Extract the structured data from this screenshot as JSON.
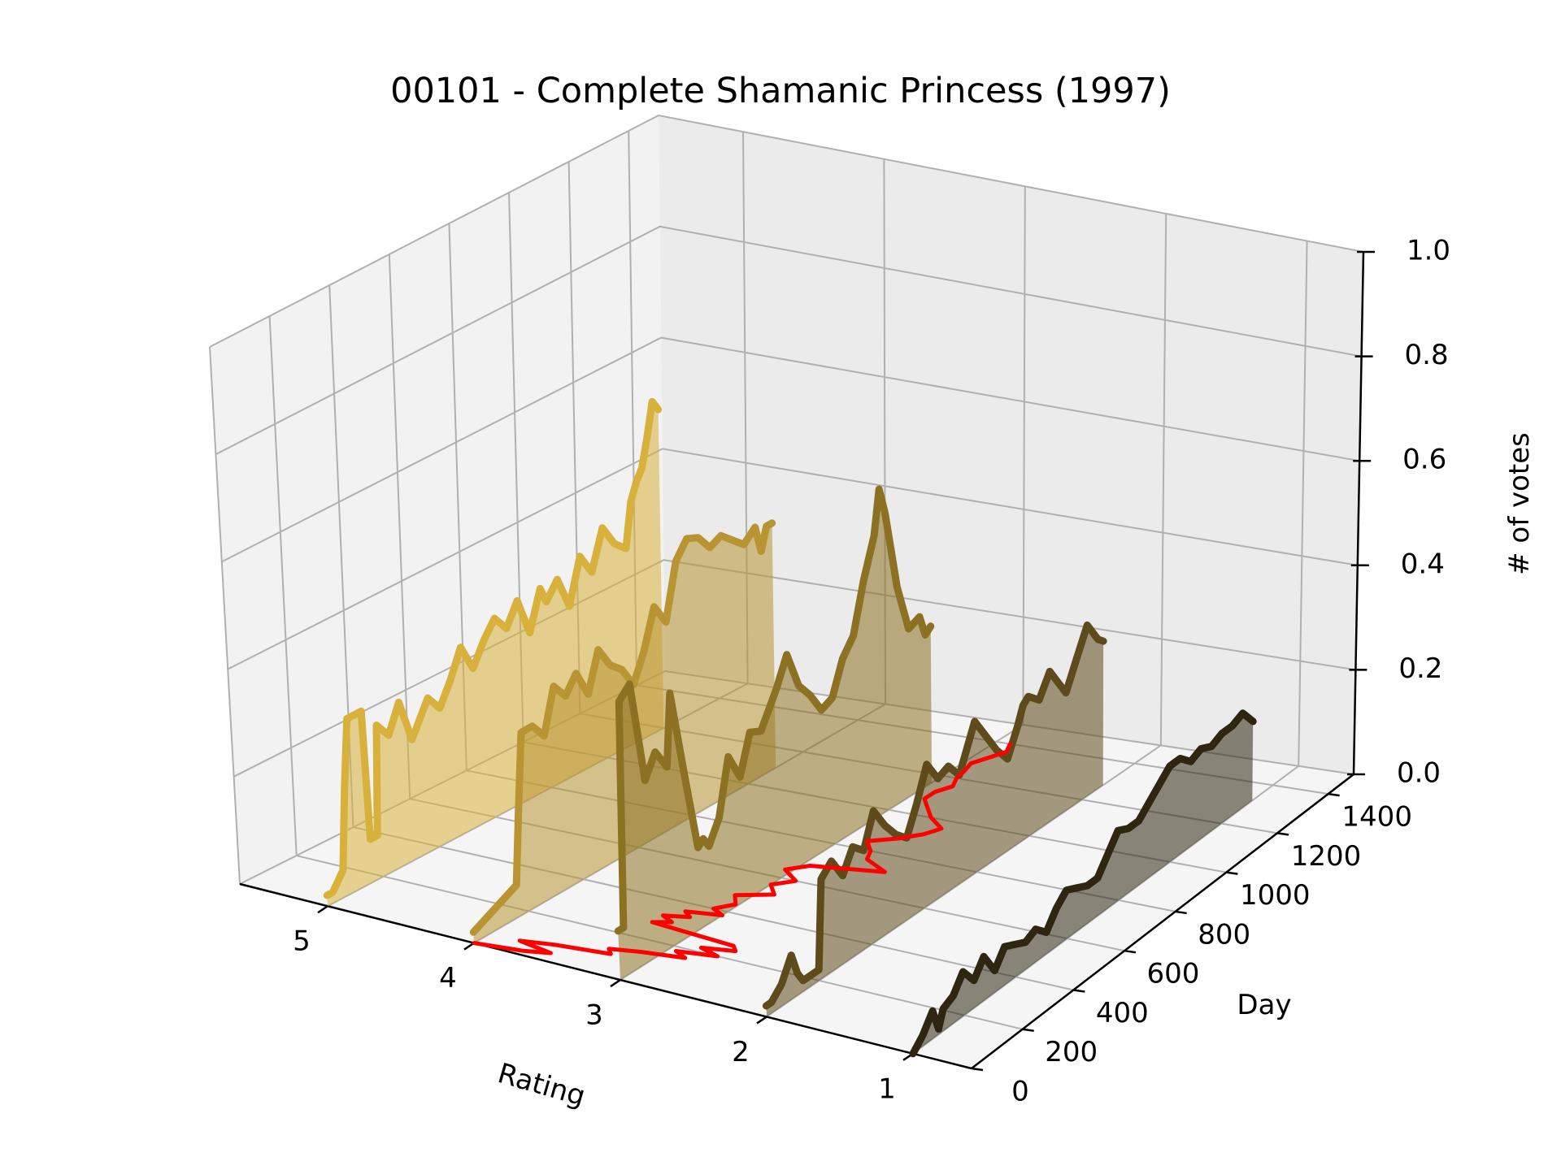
{
  "chart_data": {
    "type": "line",
    "projection": "3d",
    "title": "00101 - Complete Shamanic Princess (1997)",
    "xlabel": "Rating",
    "ylabel": "Day",
    "zlabel": "# of votes",
    "x_ticks": [
      "5",
      "4",
      "3",
      "2",
      "1"
    ],
    "y_ticks": [
      "0",
      "200",
      "400",
      "600",
      "800",
      "1000",
      "1200",
      "1400"
    ],
    "z_ticks": [
      "0.0",
      "0.2",
      "0.4",
      "0.6",
      "0.8",
      "1.0"
    ],
    "xlim": [
      0.6,
      5.6
    ],
    "ylim": [
      0,
      1500
    ],
    "zlim": [
      0,
      1
    ],
    "grid": true,
    "filled": true,
    "series": [
      {
        "rating": 5,
        "color": "#d8b13c",
        "points": [
          [
            0,
            0.02
          ],
          [
            20,
            0.02
          ],
          [
            60,
            0.05
          ],
          [
            80,
            0.2
          ],
          [
            100,
            0.32
          ],
          [
            150,
            0.32
          ],
          [
            160,
            0.08
          ],
          [
            185,
            0.08
          ],
          [
            200,
            0.28
          ],
          [
            240,
            0.25
          ],
          [
            280,
            0.3
          ],
          [
            320,
            0.22
          ],
          [
            380,
            0.28
          ],
          [
            420,
            0.25
          ],
          [
            460,
            0.29
          ],
          [
            500,
            0.34
          ],
          [
            540,
            0.29
          ],
          [
            580,
            0.33
          ],
          [
            620,
            0.36
          ],
          [
            660,
            0.33
          ],
          [
            700,
            0.37
          ],
          [
            740,
            0.3
          ],
          [
            780,
            0.37
          ],
          [
            800,
            0.34
          ],
          [
            840,
            0.37
          ],
          [
            880,
            0.31
          ],
          [
            920,
            0.39
          ],
          [
            960,
            0.35
          ],
          [
            1000,
            0.42
          ],
          [
            1040,
            0.38
          ],
          [
            1080,
            0.36
          ],
          [
            1100,
            0.44
          ],
          [
            1120,
            0.47
          ],
          [
            1140,
            0.49
          ],
          [
            1160,
            0.54
          ],
          [
            1180,
            0.6
          ],
          [
            1200,
            0.58
          ]
        ]
      },
      {
        "rating": 4,
        "color": "#b89433",
        "points": [
          [
            0,
            0.02
          ],
          [
            160,
            0.06
          ],
          [
            180,
            0.2
          ],
          [
            200,
            0.33
          ],
          [
            240,
            0.33
          ],
          [
            280,
            0.3
          ],
          [
            320,
            0.38
          ],
          [
            360,
            0.35
          ],
          [
            400,
            0.38
          ],
          [
            440,
            0.33
          ],
          [
            480,
            0.4
          ],
          [
            520,
            0.36
          ],
          [
            560,
            0.34
          ],
          [
            600,
            0.3
          ],
          [
            640,
            0.35
          ],
          [
            680,
            0.42
          ],
          [
            720,
            0.38
          ],
          [
            760,
            0.48
          ],
          [
            800,
            0.51
          ],
          [
            840,
            0.5
          ],
          [
            880,
            0.47
          ],
          [
            920,
            0.48
          ],
          [
            960,
            0.46
          ],
          [
            1000,
            0.44
          ],
          [
            1040,
            0.46
          ],
          [
            1060,
            0.41
          ],
          [
            1080,
            0.45
          ],
          [
            1100,
            0.45
          ]
        ]
      },
      {
        "rating": 3,
        "color": "#8c7122",
        "points": [
          [
            0,
            0.09
          ],
          [
            20,
            0.09
          ],
          [
            40,
            0.5
          ],
          [
            80,
            0.52
          ],
          [
            120,
            0.33
          ],
          [
            160,
            0.37
          ],
          [
            200,
            0.33
          ],
          [
            220,
            0.46
          ],
          [
            260,
            0.3
          ],
          [
            300,
            0.15
          ],
          [
            320,
            0.16
          ],
          [
            340,
            0.14
          ],
          [
            380,
            0.18
          ],
          [
            420,
            0.28
          ],
          [
            460,
            0.23
          ],
          [
            500,
            0.3
          ],
          [
            540,
            0.29
          ],
          [
            600,
            0.35
          ],
          [
            640,
            0.4
          ],
          [
            680,
            0.33
          ],
          [
            720,
            0.3
          ],
          [
            760,
            0.26
          ],
          [
            800,
            0.27
          ],
          [
            840,
            0.33
          ],
          [
            880,
            0.36
          ],
          [
            920,
            0.45
          ],
          [
            960,
            0.52
          ],
          [
            980,
            0.6
          ],
          [
            1000,
            0.55
          ],
          [
            1040,
            0.4
          ],
          [
            1080,
            0.31
          ],
          [
            1120,
            0.32
          ],
          [
            1140,
            0.28
          ],
          [
            1160,
            0.29
          ]
        ]
      },
      {
        "rating": 2,
        "color": "#5e4a1a",
        "points": [
          [
            0,
            0.02
          ],
          [
            20,
            0.02
          ],
          [
            60,
            0.04
          ],
          [
            100,
            0.08
          ],
          [
            120,
            0.04
          ],
          [
            140,
            0.02
          ],
          [
            200,
            0.02
          ],
          [
            220,
            0.18
          ],
          [
            260,
            0.2
          ],
          [
            300,
            0.16
          ],
          [
            340,
            0.2
          ],
          [
            380,
            0.18
          ],
          [
            420,
            0.24
          ],
          [
            460,
            0.2
          ],
          [
            500,
            0.17
          ],
          [
            540,
            0.15
          ],
          [
            580,
            0.2
          ],
          [
            620,
            0.26
          ],
          [
            660,
            0.22
          ],
          [
            700,
            0.23
          ],
          [
            740,
            0.2
          ],
          [
            800,
            0.28
          ],
          [
            840,
            0.24
          ],
          [
            880,
            0.2
          ],
          [
            920,
            0.17
          ],
          [
            960,
            0.22
          ],
          [
            980,
            0.25
          ],
          [
            1000,
            0.26
          ],
          [
            1040,
            0.24
          ],
          [
            1080,
            0.28
          ],
          [
            1100,
            0.26
          ],
          [
            1140,
            0.22
          ],
          [
            1180,
            0.27
          ],
          [
            1220,
            0.32
          ],
          [
            1260,
            0.28
          ],
          [
            1280,
            0.27
          ]
        ]
      },
      {
        "rating": 1,
        "color": "#2e2610",
        "points": [
          [
            0,
            0.0
          ],
          [
            20,
            0.01
          ],
          [
            40,
            0.02
          ],
          [
            80,
            0.05
          ],
          [
            100,
            0.01
          ],
          [
            120,
            0.04
          ],
          [
            160,
            0.05
          ],
          [
            200,
            0.08
          ],
          [
            240,
            0.05
          ],
          [
            280,
            0.08
          ],
          [
            320,
            0.04
          ],
          [
            360,
            0.07
          ],
          [
            400,
            0.06
          ],
          [
            440,
            0.05
          ],
          [
            480,
            0.06
          ],
          [
            520,
            0.04
          ],
          [
            560,
            0.07
          ],
          [
            600,
            0.09
          ],
          [
            640,
            0.08
          ],
          [
            680,
            0.07
          ],
          [
            720,
            0.07
          ],
          [
            760,
            0.1
          ],
          [
            800,
            0.13
          ],
          [
            840,
            0.12
          ],
          [
            880,
            0.12
          ],
          [
            920,
            0.14
          ],
          [
            960,
            0.16
          ],
          [
            1000,
            0.18
          ],
          [
            1040,
            0.18
          ],
          [
            1080,
            0.16
          ],
          [
            1120,
            0.17
          ],
          [
            1160,
            0.16
          ],
          [
            1200,
            0.17
          ],
          [
            1240,
            0.17
          ],
          [
            1280,
            0.18
          ],
          [
            1320,
            0.15
          ]
        ]
      },
      {
        "rating": "mean",
        "color": "#ff0000",
        "points": [
          [
            0,
            4.0
          ],
          [
            20,
            3.7
          ],
          [
            40,
            3.55
          ],
          [
            60,
            3.8
          ],
          [
            80,
            3.6
          ],
          [
            100,
            3.25
          ],
          [
            120,
            3.3
          ],
          [
            140,
            3.12
          ],
          [
            160,
            2.85
          ],
          [
            180,
            2.95
          ],
          [
            200,
            2.7
          ],
          [
            220,
            2.85
          ],
          [
            240,
            2.65
          ],
          [
            260,
            2.7
          ],
          [
            280,
            3.3
          ],
          [
            300,
            3.2
          ],
          [
            320,
            3.3
          ],
          [
            340,
            3.15
          ],
          [
            360,
            3.22
          ],
          [
            380,
            3.0
          ],
          [
            400,
            3.1
          ],
          [
            440,
            3.02
          ],
          [
            480,
            3.1
          ],
          [
            520,
            2.9
          ],
          [
            560,
            3.0
          ],
          [
            600,
            2.9
          ],
          [
            640,
            3.05
          ],
          [
            680,
            2.95
          ],
          [
            720,
            2.5
          ],
          [
            760,
            2.7
          ],
          [
            800,
            2.75
          ],
          [
            840,
            2.85
          ],
          [
            880,
            2.7
          ],
          [
            920,
            2.6
          ],
          [
            960,
            2.55
          ],
          [
            1000,
            2.7
          ],
          [
            1040,
            2.8
          ],
          [
            1080,
            2.9
          ],
          [
            1120,
            2.9
          ],
          [
            1160,
            2.85
          ],
          [
            1200,
            2.9
          ],
          [
            1240,
            2.92
          ],
          [
            1280,
            2.95
          ],
          [
            1320,
            2.9
          ],
          [
            1360,
            2.85
          ],
          [
            1400,
            2.9
          ]
        ]
      }
    ]
  }
}
